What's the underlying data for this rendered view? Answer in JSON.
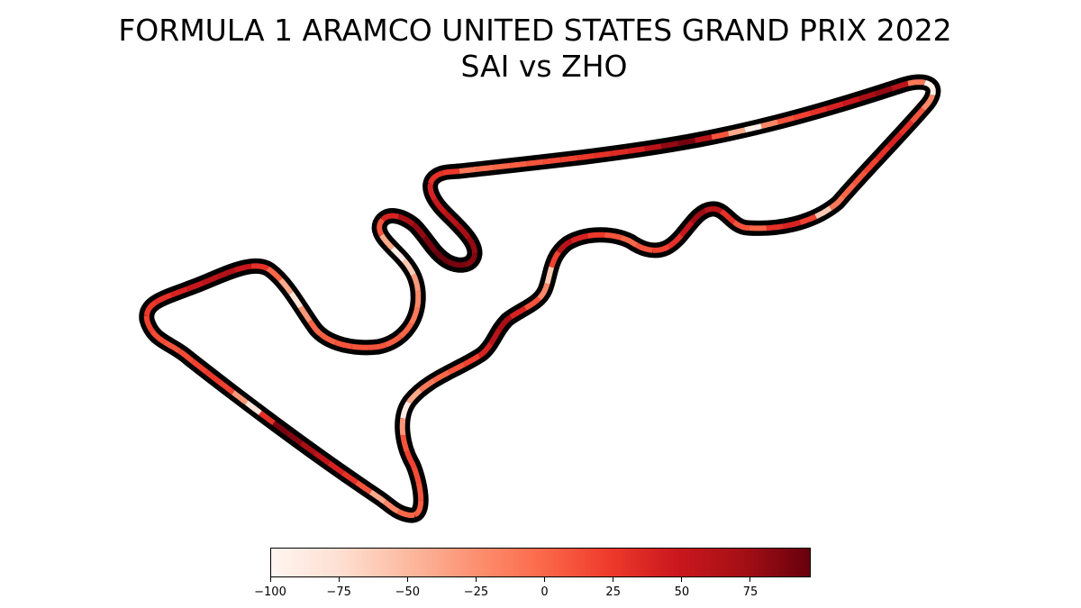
{
  "title": {
    "line1": "FORMULA 1 ARAMCO UNITED STATES GRAND PRIX 2022",
    "line2": "SAI vs ZHO"
  },
  "chart_data": {
    "type": "track-map-colored-line",
    "title": "FORMULA 1 ARAMCO UNITED STATES GRAND PRIX 2022\nSAI vs ZHO",
    "colormap": "Reds",
    "colorbar": {
      "min": -100,
      "max": 97,
      "ticks": [
        -100,
        -75,
        -50,
        -25,
        0,
        25,
        50,
        75
      ],
      "tick_labels": [
        "−100",
        "−75",
        "−50",
        "−25",
        "0",
        "25",
        "50",
        "75"
      ],
      "colors": [
        "#fff5f0",
        "#fee0d2",
        "#fcbba1",
        "#fc9272",
        "#fb6a4a",
        "#ef3b2c",
        "#cb181d",
        "#a50f15",
        "#67000d"
      ]
    },
    "track_outline_color": "#000000",
    "segment_values": [
      -10,
      -5,
      0,
      5,
      10,
      15,
      20,
      25,
      30,
      35,
      40,
      60,
      80,
      92,
      60,
      10,
      -40,
      -95,
      -20,
      10,
      20,
      30,
      40,
      50,
      70,
      80,
      60,
      -10,
      -95,
      -20,
      10,
      30,
      40,
      30,
      20,
      10,
      0,
      -10,
      -60,
      20,
      40,
      30,
      0,
      10,
      30,
      60,
      75,
      50,
      30,
      20,
      10,
      0,
      10,
      25,
      40,
      60,
      20,
      -60,
      -20,
      10,
      40,
      70,
      60,
      40,
      20,
      10,
      0,
      -10,
      -40,
      -90,
      -30,
      10,
      20,
      15,
      10,
      5,
      0,
      -20,
      -40,
      10,
      30,
      40,
      55,
      70,
      85,
      90,
      30,
      -80,
      -30,
      20,
      25,
      20,
      15,
      10,
      15,
      20,
      25,
      30,
      40,
      50,
      60,
      65,
      50,
      30,
      0,
      -40,
      -80,
      -30,
      0,
      5,
      10,
      10,
      10,
      5,
      0,
      -10,
      -20,
      -30,
      -60,
      -90,
      -40,
      10,
      40,
      70,
      80,
      90,
      95,
      90,
      85,
      80,
      70,
      60,
      50,
      40,
      30,
      25
    ]
  }
}
